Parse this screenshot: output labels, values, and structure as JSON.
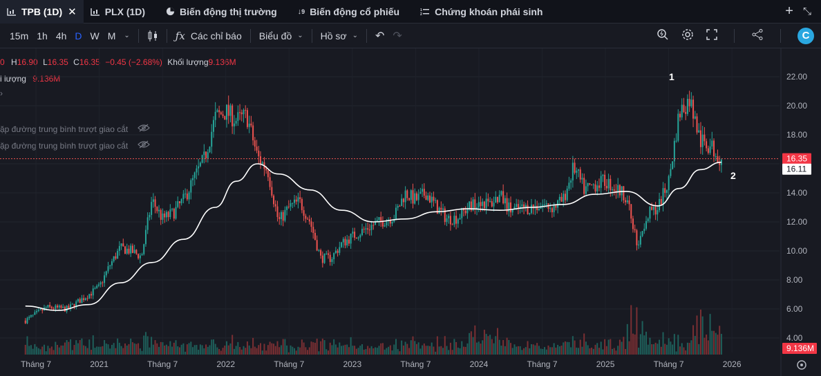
{
  "tabs": [
    {
      "label": "TPB (1D)",
      "icon": "chart-icon",
      "active": true,
      "closable": true
    },
    {
      "label": "PLX (1D)",
      "icon": "chart-icon",
      "active": false,
      "closable": false
    },
    {
      "label": "Biến động thị trường",
      "icon": "pie-chart-icon",
      "active": false,
      "closable": false
    },
    {
      "label": "Biến động cổ phiếu",
      "icon": "sort-numeric-icon",
      "active": false,
      "closable": false
    },
    {
      "label": "Chứng khoán phái sinh",
      "icon": "list-numbered-icon",
      "active": false,
      "closable": false
    }
  ],
  "toolbar": {
    "intervals": [
      "15m",
      "1h",
      "4h",
      "D",
      "W",
      "M"
    ],
    "active_interval": "D",
    "indicators_label": "Các chỉ báo",
    "chart_type_label": "Biểu đồ",
    "profile_label": "Hồ sơ"
  },
  "legend": {
    "o_tail": "0",
    "h_key": "H",
    "h_val": "16.90",
    "l_key": "L",
    "l_val": "16.35",
    "c_key": "C",
    "c_val": "16.35",
    "change": "−0.45 (−2.68%)",
    "vol_key": "Khối lượng",
    "vol_val": "9.136M",
    "vol_row_key": "i lượng",
    "vol_row_val": "9.136M",
    "ma_row1": "ặp đường trung bình trượt giao cắt",
    "ma_row2": "ặp đường trung bình trượt giao cắt"
  },
  "colors": {
    "up": "#26a69a",
    "down": "#ef5350",
    "ma": "#ffffff",
    "background": "#181a22"
  },
  "chart_data": {
    "type": "candlestick",
    "y_ticks": [
      "22.00",
      "20.00",
      "18.00",
      "16.00",
      "14.00",
      "12.00",
      "10.00",
      "8.00",
      "6.00",
      "4.00"
    ],
    "ylim": [
      3.0,
      22.0
    ],
    "x_ticks": [
      "Tháng 7",
      "2021",
      "Tháng 7",
      "2022",
      "Tháng 7",
      "2023",
      "Tháng 7",
      "2024",
      "Tháng 7",
      "2025",
      "Tháng 7",
      "2026"
    ],
    "last_price": "16.35",
    "ma_value": "16.11",
    "volume_label": "9.136M",
    "annotations": [
      "1",
      "2"
    ],
    "price_path": [
      [
        "2020-06",
        5.2
      ],
      [
        "2020-08",
        6.1
      ],
      [
        "2020-10",
        6.0
      ],
      [
        "2020-12",
        7.0
      ],
      [
        "2021-01",
        7.5
      ],
      [
        "2021-02",
        9.0
      ],
      [
        "2021-03",
        10.2
      ],
      [
        "2021-04",
        10.0
      ],
      [
        "2021-05",
        9.6
      ],
      [
        "2021-06",
        13.5
      ],
      [
        "2021-07",
        12.2
      ],
      [
        "2021-08",
        12.6
      ],
      [
        "2021-09",
        13.5
      ],
      [
        "2021-10",
        15.0
      ],
      [
        "2021-11",
        16.4
      ],
      [
        "2021-12",
        19.2
      ],
      [
        "2022-01",
        19.6
      ],
      [
        "2022-02",
        19.0
      ],
      [
        "2022-03",
        19.3
      ],
      [
        "2022-04",
        16.5
      ],
      [
        "2022-05",
        15.5
      ],
      [
        "2022-06",
        12.0
      ],
      [
        "2022-07",
        13.0
      ],
      [
        "2022-08",
        13.4
      ],
      [
        "2022-09",
        12.0
      ],
      [
        "2022-10",
        9.5
      ],
      [
        "2022-11",
        9.5
      ],
      [
        "2022-12",
        10.5
      ],
      [
        "2023-01",
        11.0
      ],
      [
        "2023-03",
        11.8
      ],
      [
        "2023-05",
        12.4
      ],
      [
        "2023-06",
        14.0
      ],
      [
        "2023-07",
        13.5
      ],
      [
        "2023-08",
        14.0
      ],
      [
        "2023-09",
        13.0
      ],
      [
        "2023-10",
        12.2
      ],
      [
        "2023-11",
        12.3
      ],
      [
        "2023-12",
        13.0
      ],
      [
        "2024-01",
        13.5
      ],
      [
        "2024-02",
        13.2
      ],
      [
        "2024-03",
        13.8
      ],
      [
        "2024-04",
        12.8
      ],
      [
        "2024-06",
        13.0
      ],
      [
        "2024-07",
        13.2
      ],
      [
        "2024-08",
        13.0
      ],
      [
        "2024-09",
        13.5
      ],
      [
        "2024-10",
        15.8
      ],
      [
        "2024-11",
        14.2
      ],
      [
        "2024-12",
        14.6
      ],
      [
        "2025-01",
        14.8
      ],
      [
        "2025-02",
        14.3
      ],
      [
        "2025-03",
        13.8
      ],
      [
        "2025-04",
        10.5
      ],
      [
        "2025-05",
        12.5
      ],
      [
        "2025-06",
        13.0
      ],
      [
        "2025-07",
        14.8
      ],
      [
        "2025-08",
        19.5
      ],
      [
        "2025-09",
        20.5
      ],
      [
        "2025-10",
        17.5
      ],
      [
        "2025-11",
        17.2
      ],
      [
        "2025-12",
        16.35
      ]
    ],
    "ma_path": [
      [
        "2020-06",
        6.2
      ],
      [
        "2020-09",
        5.9
      ],
      [
        "2020-12",
        6.3
      ],
      [
        "2021-03",
        7.8
      ],
      [
        "2021-06",
        9.2
      ],
      [
        "2021-09",
        10.8
      ],
      [
        "2021-12",
        13.0
      ],
      [
        "2022-02",
        14.8
      ],
      [
        "2022-04",
        16.0
      ],
      [
        "2022-06",
        15.3
      ],
      [
        "2022-09",
        14.2
      ],
      [
        "2022-12",
        12.8
      ],
      [
        "2023-03",
        12.0
      ],
      [
        "2023-06",
        12.2
      ],
      [
        "2023-09",
        12.7
      ],
      [
        "2023-12",
        12.9
      ],
      [
        "2024-03",
        12.8
      ],
      [
        "2024-06",
        13.0
      ],
      [
        "2024-09",
        13.2
      ],
      [
        "2024-12",
        13.9
      ],
      [
        "2025-03",
        14.1
      ],
      [
        "2025-06",
        13.1
      ],
      [
        "2025-08",
        14.3
      ],
      [
        "2025-10",
        15.6
      ],
      [
        "2025-12",
        16.11
      ]
    ]
  }
}
